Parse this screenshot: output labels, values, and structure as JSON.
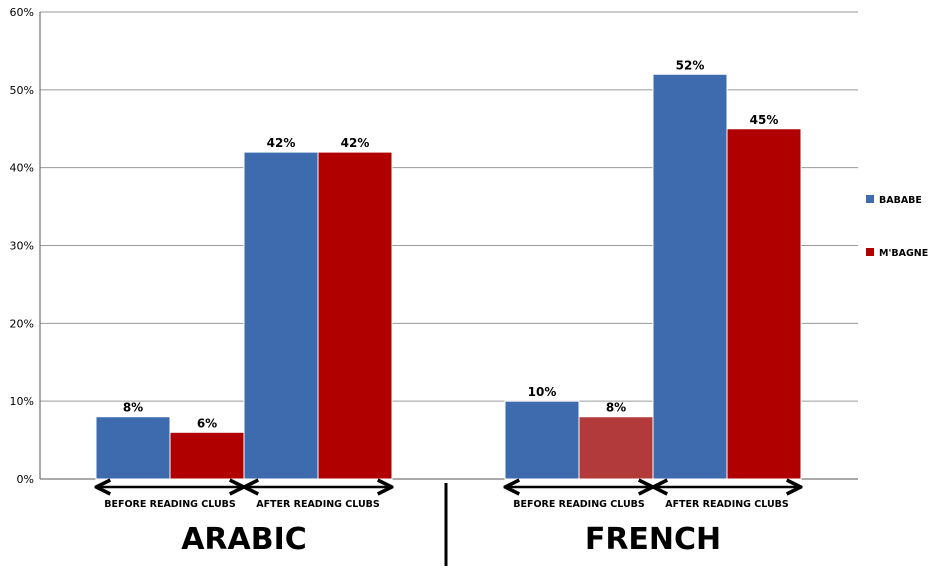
{
  "chart_data": {
    "type": "bar",
    "groups": [
      {
        "label": "ARABIC",
        "phases": [
          {
            "label": "BEFORE READING CLUBS",
            "values": [
              8,
              6
            ],
            "value_labels": [
              "8%",
              "6%"
            ]
          },
          {
            "label": "AFTER READING CLUBS",
            "values": [
              42,
              42
            ],
            "value_labels": [
              "42%",
              "42%"
            ]
          }
        ]
      },
      {
        "label": "FRENCH",
        "phases": [
          {
            "label": "BEFORE READING CLUBS",
            "values": [
              10,
              8
            ],
            "value_labels": [
              "10%",
              "8%"
            ]
          },
          {
            "label": "AFTER READING CLUBS",
            "values": [
              52,
              45
            ],
            "value_labels": [
              "52%",
              "45%"
            ]
          }
        ]
      }
    ],
    "series": [
      {
        "name": "BABABE",
        "color": "#3e6aae"
      },
      {
        "name": "M'BAGNE",
        "color": "#b00000"
      }
    ],
    "highlight_color": "#b23a3a",
    "yticks": [
      "0%",
      "10%",
      "20%",
      "30%",
      "40%",
      "50%",
      "60%"
    ],
    "ylim": [
      0,
      60
    ],
    "grid": true,
    "legend_position": "right"
  }
}
